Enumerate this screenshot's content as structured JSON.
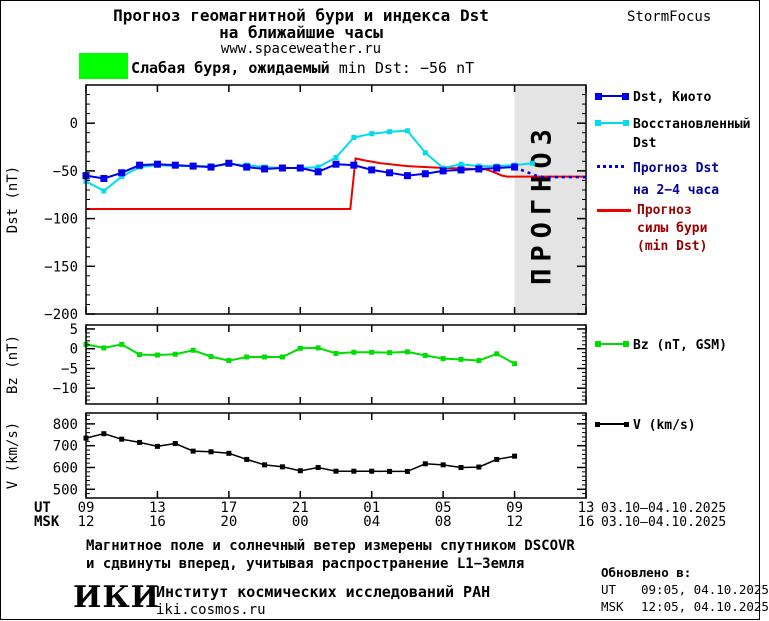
{
  "header": {
    "title_line1": "Прогноз геомагнитной бури и индекса Dst",
    "title_line2": "на ближайшие часы",
    "title_line3": "www.spaceweather.ru",
    "brand": "StormFocus"
  },
  "storm_banner": {
    "bold_text": "Слабая буря, ожидаемый",
    "normal_text": "min Dst: −56 nT"
  },
  "forecast_watermark": "ПРОГНОЗ",
  "colors": {
    "kyoto_blue": "#0000ee",
    "restored_cyan": "#00dcec",
    "storm_red": "#ee0000",
    "bz_green": "#00dd00",
    "v_black": "#000000",
    "storm_level_green": "#00ff00",
    "forecast_region": "#e4e4e4",
    "watermark": "#c8c8c8",
    "navy_text": "#000099",
    "maroon_text": "#990000"
  },
  "legend": {
    "kyoto": {
      "l1": "Dst, Киото"
    },
    "restored": {
      "l1": "Восстановленный",
      "l2": "Dst"
    },
    "forecast": {
      "l1": "Прогноз Dst",
      "l2": "на 2−4 часа"
    },
    "storm": {
      "l1": "Прогноз",
      "l2": "силы бури",
      "l3": "(min Dst)"
    },
    "bz": {
      "l1": "Bz (nT, GSM)"
    },
    "v": {
      "l1": "V (km/s)"
    }
  },
  "xaxis": {
    "ticks_hours": [
      0,
      4,
      8,
      12,
      16,
      20,
      24,
      28
    ],
    "ut_label": "UT",
    "msk_label": "MSK",
    "ut": [
      "09",
      "13",
      "17",
      "21",
      "01",
      "05",
      "09",
      "13"
    ],
    "msk": [
      "12",
      "16",
      "20",
      "00",
      "04",
      "08",
      "12",
      "16"
    ],
    "date_range": "03.10–04.10.2025"
  },
  "chart_data": [
    {
      "type": "line",
      "panel": "dst",
      "ylabel": "Dst (nT)",
      "ylim": [
        40,
        -200
      ],
      "yticks": [
        0,
        -50,
        -100,
        -150,
        -200
      ],
      "yminor_step": 10,
      "x_hours_span": 28,
      "x_start_ut": "09:00 03.10.2025",
      "forecast_region_hours": [
        24,
        28
      ],
      "series": [
        {
          "name": "Прогноз силы бури (min Dst)",
          "color": "#ee0000",
          "width": 2,
          "points": [
            [
              0,
              -90
            ],
            [
              14.8,
              -90
            ],
            [
              15.1,
              -37
            ],
            [
              15.6,
              -39
            ],
            [
              16.5,
              -42
            ],
            [
              18,
              -45
            ],
            [
              19.5,
              -46.5
            ],
            [
              21,
              -47.5
            ],
            [
              22.4,
              -48.5
            ],
            [
              22.8,
              -51
            ],
            [
              23.3,
              -55
            ],
            [
              23.6,
              -56
            ],
            [
              28,
              -56
            ]
          ]
        },
        {
          "name": "Восстановленный Dst",
          "color": "#00dcec",
          "width": 2,
          "marker": 5,
          "start_hour": 0,
          "step": 1,
          "values": [
            -61,
            -71,
            -56,
            -46,
            -44,
            -45,
            -45,
            -45,
            -43,
            -44,
            -46,
            -47,
            -47,
            -46,
            -36,
            -15,
            -11,
            -9,
            -8,
            -31,
            -47,
            -43,
            -45,
            -45,
            -44,
            -42
          ]
        },
        {
          "name": "Dst, Киото",
          "color": "#0000ee",
          "width": 2,
          "marker": 7,
          "start_hour": 0,
          "step": 1,
          "values": [
            -55,
            -58,
            -52,
            -44,
            -43,
            -44,
            -45,
            -46,
            -42,
            -46,
            -48,
            -47,
            -47,
            -51,
            -43,
            -44,
            -49,
            -52,
            -55,
            -53,
            -50,
            -49,
            -48,
            -47,
            -46
          ]
        },
        {
          "name": "Прогноз Dst на 2−4 часа",
          "color": "#0000ee",
          "width": 2.5,
          "dash": "3 4",
          "points": [
            [
              24,
              -46
            ],
            [
              24.3,
              -48.5
            ],
            [
              24.8,
              -52
            ],
            [
              25.2,
              -55
            ],
            [
              25.6,
              -56.5
            ],
            [
              28,
              -56.5
            ]
          ]
        }
      ]
    },
    {
      "type": "line",
      "panel": "bz",
      "ylabel": "Bz (nT)",
      "ylim": [
        6,
        -14
      ],
      "yticks": [
        5,
        0,
        -5,
        -10
      ],
      "yminor_step": 1,
      "series": [
        {
          "name": "Bz (nT, GSM)",
          "color": "#00dd00",
          "width": 2,
          "marker": 5,
          "start_hour": 0,
          "step": 1,
          "values": [
            1.1,
            0.2,
            1.1,
            -1.5,
            -1.6,
            -1.4,
            -0.4,
            -2.0,
            -3.0,
            -2.1,
            -2.1,
            -2.1,
            0.1,
            0.2,
            -1.2,
            -0.9,
            -0.9,
            -1.0,
            -0.8,
            -1.7,
            -2.5,
            -2.7,
            -3.0,
            -1.3,
            -3.8
          ]
        }
      ]
    },
    {
      "type": "line",
      "panel": "v",
      "ylabel": "V (km/s)",
      "ylim": [
        850,
        460
      ],
      "yticks": [
        800,
        700,
        600,
        500
      ],
      "yminor_step": 20,
      "series": [
        {
          "name": "V (km/s)",
          "color": "#000000",
          "width": 1.5,
          "marker": 5,
          "start_hour": 0,
          "step": 1,
          "values": [
            735,
            755,
            730,
            715,
            697,
            710,
            675,
            672,
            665,
            637,
            612,
            603,
            585,
            600,
            583,
            583,
            583,
            582,
            582,
            617,
            612,
            600,
            602,
            637,
            652
          ]
        }
      ]
    }
  ],
  "footer": {
    "line1": "Магнитное поле и солнечный ветер измерены спутником DSCOVR",
    "line2": "и сдвинуты вперед, учитывая распространение L1−Земля",
    "logo": "ИКИ",
    "institute": "Институт космических исследований РАН",
    "site": "iki.cosmos.ru",
    "updated_header": "Обновлено в:",
    "updated_ut_label": "UT",
    "updated_ut": "09:05, 04.10.2025",
    "updated_msk_label": "MSK",
    "updated_msk": "12:05, 04.10.2025"
  }
}
